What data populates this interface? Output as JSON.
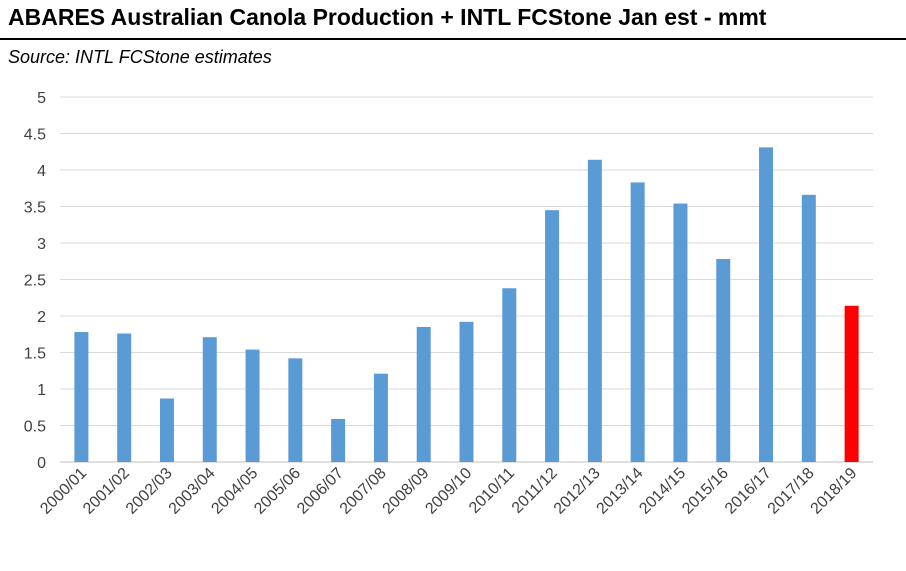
{
  "title": "ABARES Australian Canola Production + INTL FCStone Jan est - mmt",
  "subtitle": "Source: INTL FCStone estimates",
  "colors": {
    "bar": "#5b9bd5",
    "highlight": "#ff0000",
    "grid": "#d9d9d9",
    "text": "#404040"
  },
  "chart_data": {
    "type": "bar",
    "title": "ABARES Australian Canola Production + INTL FCStone Jan est - mmt",
    "subtitle": "Source: INTL FCStone estimates",
    "xlabel": "",
    "ylabel": "",
    "ylim": [
      0,
      5
    ],
    "yticks": [
      0,
      0.5,
      1,
      1.5,
      2,
      2.5,
      3,
      3.5,
      4,
      4.5,
      5
    ],
    "ytick_labels": [
      "0",
      "0.5",
      "1",
      "1.5",
      "2",
      "2.5",
      "3",
      "3.5",
      "4",
      "4.5",
      "5"
    ],
    "grid": true,
    "legend": "none",
    "categories": [
      "2000/01",
      "2001/02",
      "2002/03",
      "2003/04",
      "2004/05",
      "2005/06",
      "2006/07",
      "2007/08",
      "2008/09",
      "2009/10",
      "2010/11",
      "2011/12",
      "2012/13",
      "2013/14",
      "2014/15",
      "2015/16",
      "2016/17",
      "2017/18",
      "2018/19"
    ],
    "values": [
      1.78,
      1.76,
      0.87,
      1.71,
      1.54,
      1.42,
      0.59,
      1.21,
      1.85,
      1.92,
      2.38,
      3.45,
      4.14,
      3.83,
      3.54,
      2.78,
      4.31,
      3.66,
      2.14
    ],
    "highlight_index": 18
  }
}
